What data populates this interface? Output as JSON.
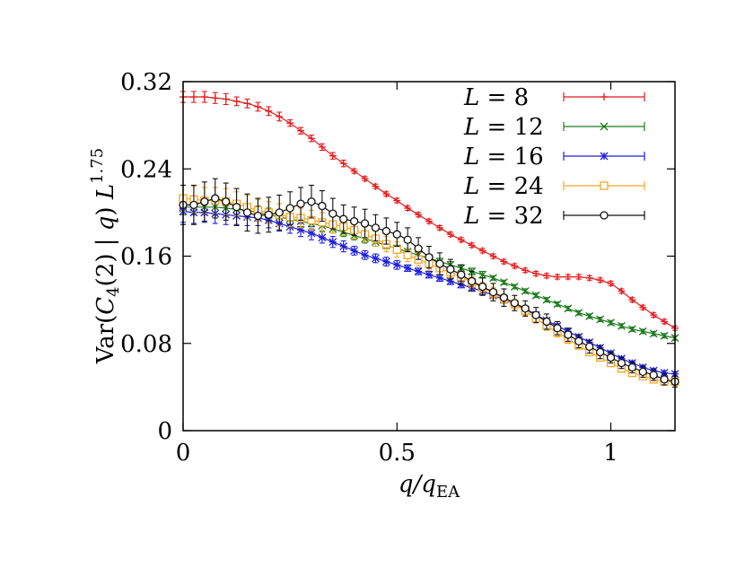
{
  "chart_data": {
    "type": "line",
    "xlabel": "q/q_EA",
    "ylabel": "Var(C_4(2) | q) L^1.75",
    "xlim": [
      0,
      1.15
    ],
    "ylim": [
      0,
      0.32
    ],
    "x_ticks": [
      "0",
      "0.5",
      "1"
    ],
    "y_ticks": [
      "0",
      "0.08",
      "0.16",
      "0.24",
      "0.32"
    ],
    "legend_position": "top-right",
    "grid": false,
    "series": [
      {
        "name": "L = 8",
        "color": "#e31a1c",
        "marker": "plus",
        "x": [
          0,
          0.025,
          0.05,
          0.075,
          0.1,
          0.125,
          0.15,
          0.175,
          0.2,
          0.225,
          0.25,
          0.275,
          0.3,
          0.325,
          0.35,
          0.375,
          0.4,
          0.425,
          0.45,
          0.475,
          0.5,
          0.525,
          0.55,
          0.575,
          0.6,
          0.625,
          0.65,
          0.675,
          0.7,
          0.725,
          0.75,
          0.775,
          0.8,
          0.825,
          0.85,
          0.875,
          0.9,
          0.925,
          0.95,
          0.975,
          1.0,
          1.025,
          1.05,
          1.075,
          1.1,
          1.125,
          1.15
        ],
        "y": [
          0.306,
          0.306,
          0.306,
          0.305,
          0.304,
          0.302,
          0.3,
          0.297,
          0.293,
          0.288,
          0.282,
          0.275,
          0.268,
          0.26,
          0.252,
          0.245,
          0.238,
          0.231,
          0.224,
          0.217,
          0.211,
          0.204,
          0.198,
          0.192,
          0.186,
          0.18,
          0.175,
          0.17,
          0.165,
          0.16,
          0.155,
          0.151,
          0.147,
          0.144,
          0.142,
          0.141,
          0.141,
          0.141,
          0.14,
          0.138,
          0.135,
          0.128,
          0.12,
          0.113,
          0.106,
          0.1,
          0.094
        ],
        "err": [
          0.005,
          0.005,
          0.005,
          0.005,
          0.005,
          0.004,
          0.004,
          0.004,
          0.004,
          0.004,
          0.003,
          0.003,
          0.003,
          0.003,
          0.003,
          0.003,
          0.002,
          0.002,
          0.002,
          0.002,
          0.002,
          0.002,
          0.002,
          0.002,
          0.002,
          0.002,
          0.002,
          0.002,
          0.002,
          0.002,
          0.002,
          0.002,
          0.002,
          0.002,
          0.002,
          0.002,
          0.002,
          0.002,
          0.002,
          0.002,
          0.002,
          0.002,
          0.002,
          0.002,
          0.002,
          0.002,
          0.002
        ]
      },
      {
        "name": "L = 12",
        "color": "#1b7a1b",
        "marker": "cross",
        "x": [
          0,
          0.025,
          0.05,
          0.075,
          0.1,
          0.125,
          0.15,
          0.175,
          0.2,
          0.225,
          0.25,
          0.275,
          0.3,
          0.325,
          0.35,
          0.375,
          0.4,
          0.425,
          0.45,
          0.475,
          0.5,
          0.525,
          0.55,
          0.575,
          0.6,
          0.625,
          0.65,
          0.675,
          0.7,
          0.725,
          0.75,
          0.775,
          0.8,
          0.825,
          0.85,
          0.875,
          0.9,
          0.925,
          0.95,
          0.975,
          1.0,
          1.025,
          1.05,
          1.075,
          1.1,
          1.125,
          1.15
        ],
        "y": [
          0.205,
          0.205,
          0.205,
          0.205,
          0.204,
          0.203,
          0.202,
          0.2,
          0.198,
          0.196,
          0.194,
          0.192,
          0.19,
          0.188,
          0.185,
          0.182,
          0.179,
          0.176,
          0.173,
          0.17,
          0.167,
          0.164,
          0.161,
          0.158,
          0.155,
          0.152,
          0.149,
          0.146,
          0.143,
          0.14,
          0.136,
          0.132,
          0.128,
          0.124,
          0.12,
          0.116,
          0.112,
          0.108,
          0.105,
          0.102,
          0.099,
          0.096,
          0.093,
          0.091,
          0.089,
          0.087,
          0.085
        ],
        "err": [
          0.007,
          0.007,
          0.007,
          0.007,
          0.007,
          0.006,
          0.006,
          0.006,
          0.006,
          0.005,
          0.005,
          0.005,
          0.005,
          0.005,
          0.004,
          0.004,
          0.004,
          0.004,
          0.004,
          0.003,
          0.003,
          0.003,
          0.003,
          0.003,
          0.003,
          0.003,
          0.003,
          0.003,
          0.003,
          0.002,
          0.002,
          0.002,
          0.002,
          0.002,
          0.002,
          0.002,
          0.002,
          0.002,
          0.002,
          0.002,
          0.002,
          0.002,
          0.002,
          0.002,
          0.002,
          0.002,
          0.002
        ]
      },
      {
        "name": "L = 16",
        "color": "#1f1fdd",
        "marker": "star",
        "x": [
          0,
          0.025,
          0.05,
          0.075,
          0.1,
          0.125,
          0.15,
          0.175,
          0.2,
          0.225,
          0.25,
          0.275,
          0.3,
          0.325,
          0.35,
          0.375,
          0.4,
          0.425,
          0.45,
          0.475,
          0.5,
          0.525,
          0.55,
          0.575,
          0.6,
          0.625,
          0.65,
          0.675,
          0.7,
          0.725,
          0.75,
          0.775,
          0.8,
          0.825,
          0.85,
          0.875,
          0.9,
          0.925,
          0.95,
          0.975,
          1.0,
          1.025,
          1.05,
          1.075,
          1.1,
          1.125,
          1.15
        ],
        "y": [
          0.201,
          0.2,
          0.2,
          0.199,
          0.198,
          0.197,
          0.196,
          0.195,
          0.193,
          0.19,
          0.187,
          0.184,
          0.181,
          0.177,
          0.173,
          0.169,
          0.165,
          0.161,
          0.158,
          0.155,
          0.152,
          0.149,
          0.146,
          0.143,
          0.14,
          0.137,
          0.134,
          0.131,
          0.128,
          0.124,
          0.12,
          0.116,
          0.111,
          0.106,
          0.101,
          0.096,
          0.091,
          0.086,
          0.081,
          0.076,
          0.071,
          0.066,
          0.062,
          0.058,
          0.055,
          0.053,
          0.052
        ],
        "err": [
          0.01,
          0.01,
          0.009,
          0.009,
          0.009,
          0.008,
          0.008,
          0.007,
          0.007,
          0.007,
          0.006,
          0.006,
          0.006,
          0.005,
          0.005,
          0.005,
          0.004,
          0.004,
          0.004,
          0.004,
          0.004,
          0.003,
          0.003,
          0.003,
          0.003,
          0.003,
          0.003,
          0.003,
          0.003,
          0.003,
          0.003,
          0.003,
          0.002,
          0.002,
          0.002,
          0.002,
          0.002,
          0.002,
          0.002,
          0.002,
          0.002,
          0.002,
          0.002,
          0.002,
          0.002,
          0.002,
          0.002
        ]
      },
      {
        "name": "L = 24",
        "color": "#f5a623",
        "marker": "square",
        "x": [
          0,
          0.025,
          0.05,
          0.075,
          0.1,
          0.125,
          0.15,
          0.175,
          0.2,
          0.225,
          0.25,
          0.275,
          0.3,
          0.325,
          0.35,
          0.375,
          0.4,
          0.425,
          0.45,
          0.475,
          0.5,
          0.525,
          0.55,
          0.575,
          0.6,
          0.625,
          0.65,
          0.675,
          0.7,
          0.725,
          0.75,
          0.775,
          0.8,
          0.825,
          0.85,
          0.875,
          0.9,
          0.925,
          0.95,
          0.975,
          1.0,
          1.025,
          1.05,
          1.075,
          1.1,
          1.125,
          1.15
        ],
        "y": [
          0.213,
          0.212,
          0.211,
          0.211,
          0.21,
          0.208,
          0.205,
          0.202,
          0.2,
          0.198,
          0.196,
          0.195,
          0.193,
          0.191,
          0.189,
          0.187,
          0.184,
          0.18,
          0.176,
          0.171,
          0.166,
          0.161,
          0.157,
          0.153,
          0.149,
          0.145,
          0.141,
          0.136,
          0.131,
          0.126,
          0.121,
          0.116,
          0.11,
          0.103,
          0.096,
          0.09,
          0.084,
          0.078,
          0.072,
          0.067,
          0.062,
          0.057,
          0.053,
          0.05,
          0.047,
          0.045,
          0.045
        ],
        "err": [
          0.012,
          0.012,
          0.012,
          0.012,
          0.012,
          0.011,
          0.011,
          0.01,
          0.01,
          0.01,
          0.009,
          0.009,
          0.009,
          0.009,
          0.008,
          0.008,
          0.008,
          0.007,
          0.007,
          0.007,
          0.007,
          0.006,
          0.006,
          0.006,
          0.006,
          0.005,
          0.005,
          0.005,
          0.005,
          0.005,
          0.004,
          0.004,
          0.004,
          0.004,
          0.004,
          0.004,
          0.004,
          0.003,
          0.003,
          0.003,
          0.003,
          0.003,
          0.003,
          0.003,
          0.003,
          0.003,
          0.003
        ]
      },
      {
        "name": "L = 32",
        "color": "#111111",
        "marker": "circle",
        "x": [
          0,
          0.025,
          0.05,
          0.075,
          0.1,
          0.125,
          0.15,
          0.175,
          0.2,
          0.225,
          0.25,
          0.275,
          0.3,
          0.325,
          0.35,
          0.375,
          0.4,
          0.425,
          0.45,
          0.475,
          0.5,
          0.525,
          0.55,
          0.575,
          0.6,
          0.625,
          0.65,
          0.675,
          0.7,
          0.725,
          0.75,
          0.775,
          0.8,
          0.825,
          0.85,
          0.875,
          0.9,
          0.925,
          0.95,
          0.975,
          1.0,
          1.025,
          1.05,
          1.075,
          1.1,
          1.125,
          1.15
        ],
        "y": [
          0.207,
          0.207,
          0.21,
          0.213,
          0.21,
          0.205,
          0.2,
          0.197,
          0.198,
          0.2,
          0.204,
          0.208,
          0.21,
          0.206,
          0.199,
          0.194,
          0.192,
          0.19,
          0.186,
          0.183,
          0.18,
          0.175,
          0.167,
          0.159,
          0.153,
          0.148,
          0.143,
          0.137,
          0.132,
          0.127,
          0.122,
          0.117,
          0.112,
          0.106,
          0.1,
          0.094,
          0.088,
          0.082,
          0.077,
          0.072,
          0.067,
          0.062,
          0.058,
          0.054,
          0.051,
          0.047,
          0.045
        ],
        "err": [
          0.018,
          0.018,
          0.018,
          0.018,
          0.017,
          0.017,
          0.017,
          0.016,
          0.016,
          0.016,
          0.015,
          0.015,
          0.015,
          0.014,
          0.014,
          0.013,
          0.013,
          0.013,
          0.012,
          0.012,
          0.011,
          0.011,
          0.01,
          0.01,
          0.01,
          0.009,
          0.009,
          0.009,
          0.008,
          0.008,
          0.008,
          0.007,
          0.007,
          0.007,
          0.007,
          0.006,
          0.006,
          0.006,
          0.006,
          0.006,
          0.005,
          0.005,
          0.005,
          0.005,
          0.005,
          0.005,
          0.005
        ]
      }
    ]
  }
}
